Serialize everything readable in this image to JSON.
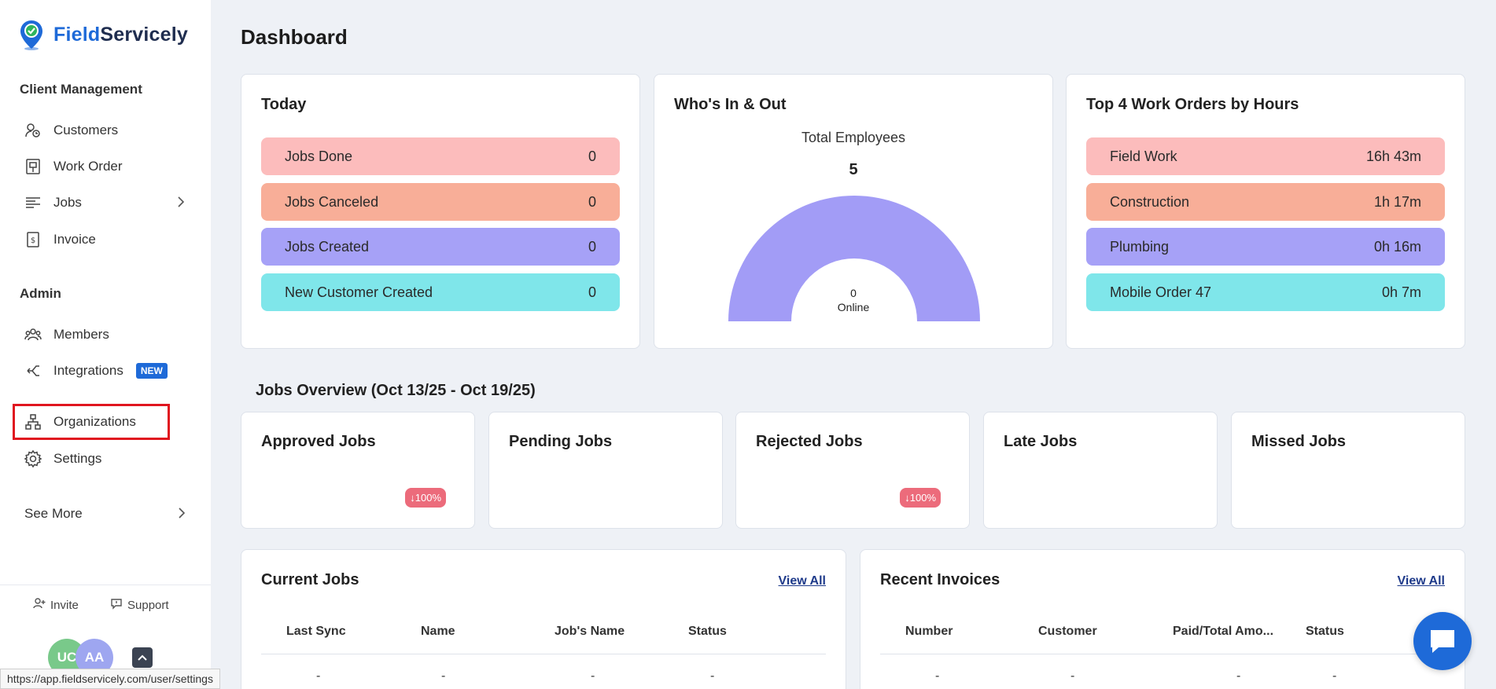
{
  "app": {
    "name_part1": "Field",
    "name_part2": "Servicely"
  },
  "sidebar": {
    "client_section": "Client Management",
    "client_items": [
      {
        "label": "Customers",
        "icon": "customers-icon"
      },
      {
        "label": "Work Order",
        "icon": "work-order-icon"
      },
      {
        "label": "Jobs",
        "icon": "jobs-icon"
      },
      {
        "label": "Invoice",
        "icon": "invoice-icon"
      }
    ],
    "admin_section": "Admin",
    "admin_items": [
      {
        "label": "Members",
        "icon": "members-icon"
      },
      {
        "label": "Integrations",
        "icon": "integrations-icon",
        "badge": "NEW"
      },
      {
        "label": "Organizations",
        "icon": "organizations-icon"
      },
      {
        "label": "Settings",
        "icon": "gear-icon"
      }
    ],
    "see_more": "See More",
    "invite": "Invite",
    "support": "Support",
    "avatars": [
      "UC",
      "AA"
    ],
    "url_tooltip": "https://app.fieldservicely.com/user/settings"
  },
  "page": {
    "title": "Dashboard"
  },
  "today": {
    "title": "Today",
    "rows": [
      {
        "label": "Jobs Done",
        "value": "0"
      },
      {
        "label": "Jobs Canceled",
        "value": "0"
      },
      {
        "label": "Jobs Created",
        "value": "0"
      },
      {
        "label": "New Customer Created",
        "value": "0"
      }
    ]
  },
  "whos_in": {
    "title": "Who's In & Out",
    "total_label": "Total Employees",
    "total_value": "5",
    "online_value": "0",
    "online_label": "Online"
  },
  "top_orders": {
    "title": "Top 4 Work Orders by Hours",
    "rows": [
      {
        "label": "Field Work",
        "value": "16h 43m"
      },
      {
        "label": "Construction",
        "value": "1h 17m"
      },
      {
        "label": "Plumbing",
        "value": "0h 16m"
      },
      {
        "label": "Mobile Order 47",
        "value": "0h 7m"
      }
    ]
  },
  "overview": {
    "title": "Jobs Overview (Oct 13/25 - Oct 19/25)",
    "cards": [
      {
        "title": "Approved Jobs",
        "badge": "↓100%"
      },
      {
        "title": "Pending Jobs",
        "badge": ""
      },
      {
        "title": "Rejected Jobs",
        "badge": "↓100%"
      },
      {
        "title": "Late Jobs",
        "badge": ""
      },
      {
        "title": "Missed Jobs",
        "badge": ""
      }
    ]
  },
  "current_jobs": {
    "title": "Current Jobs",
    "view_all": "View All",
    "headers": [
      "Last Sync",
      "Name",
      "Job's Name",
      "Status"
    ],
    "row": [
      "-",
      "-",
      "-",
      "-"
    ]
  },
  "recent_invoices": {
    "title": "Recent Invoices",
    "view_all": "View All",
    "headers": [
      "Number",
      "Customer",
      "Paid/Total Amo...",
      "Status"
    ],
    "row": [
      "-",
      "-",
      "-",
      "-"
    ]
  },
  "colors": {
    "brand": "#1e6ad8",
    "red_row": "#fcbcbc",
    "orange_row": "#f8ae98",
    "purple_row": "#a6a1f7",
    "cyan_row": "#7fe6ea",
    "highlight": "#e0151f"
  }
}
